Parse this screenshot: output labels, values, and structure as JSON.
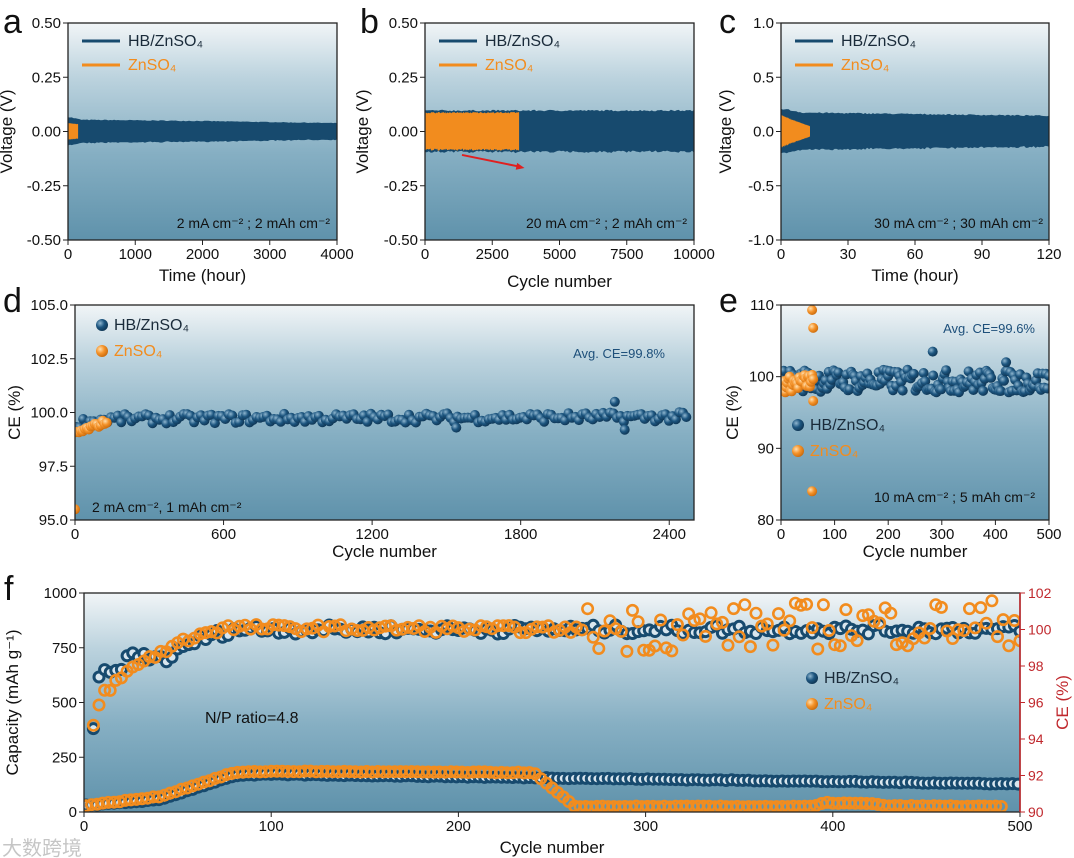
{
  "colors": {
    "hb": "#174a6e",
    "zn": "#f28c1e",
    "ce_axis": "#c0282d",
    "arrow": "#e02020"
  },
  "watermark": "大数跨境",
  "chart_data": [
    {
      "id": "a",
      "panel_label": "a",
      "type": "line",
      "xlabel": "Time (hour)",
      "ylabel": "Voltage (V)",
      "xlim": [
        0,
        4000
      ],
      "ylim": [
        -0.5,
        0.5
      ],
      "xticks": [
        0,
        1000,
        2000,
        3000,
        4000
      ],
      "xtick_labels": [
        "0",
        "1000",
        "2000",
        "3000",
        "4000"
      ],
      "yticks": [
        -0.5,
        -0.25,
        0,
        0.25,
        0.5
      ],
      "ytick_labels": [
        "-0.50",
        "-0.25",
        "0.00",
        "0.25",
        "0.50"
      ],
      "legend": [
        "HB/ZnSO₄",
        "ZnSO₄"
      ],
      "annotations": [
        "2 mA cm⁻² ; 2 mAh cm⁻²"
      ],
      "series": [
        {
          "name": "HB/ZnSO₄",
          "color_key": "hb",
          "kind": "voltage_band",
          "amplitude": [
            [
              0,
              0.07
            ],
            [
              200,
              0.056
            ],
            [
              2000,
              0.05
            ],
            [
              4000,
              0.04
            ]
          ]
        },
        {
          "name": "ZnSO₄",
          "color_key": "zn",
          "kind": "voltage_band",
          "amplitude": [
            [
              0,
              0.04
            ],
            [
              150,
              0.035
            ]
          ]
        }
      ]
    },
    {
      "id": "b",
      "panel_label": "b",
      "type": "line",
      "xlabel": "Cycle number",
      "ylabel": "Voltage (V)",
      "xlim": [
        0,
        10000
      ],
      "ylim": [
        -0.5,
        0.5
      ],
      "xticks": [
        0,
        2500,
        5000,
        7500,
        10000
      ],
      "xtick_labels": [
        "0",
        "2500",
        "5000",
        "7500",
        "10000"
      ],
      "yticks": [
        -0.5,
        -0.25,
        0,
        0.25,
        0.5
      ],
      "ytick_labels": [
        "-0.50",
        "-0.25",
        "0.00",
        "0.25",
        "0.50"
      ],
      "legend": [
        "HB/ZnSO₄",
        "ZnSO₄"
      ],
      "annotations": [
        "20 mA cm⁻² ; 2 mAh cm⁻²"
      ],
      "arrow": {
        "from": [
          1375,
          -0.108
        ],
        "to": [
          3700,
          -0.168
        ]
      },
      "series": [
        {
          "name": "HB/ZnSO₄",
          "color_key": "hb",
          "kind": "voltage_band",
          "amplitude": [
            [
              0,
              0.1
            ],
            [
              10000,
              0.1
            ]
          ]
        },
        {
          "name": "ZnSO₄",
          "color_key": "zn",
          "kind": "voltage_band",
          "amplitude": [
            [
              0,
              0.09
            ],
            [
              3500,
              0.09
            ]
          ]
        }
      ]
    },
    {
      "id": "c",
      "panel_label": "c",
      "type": "line",
      "xlabel": "Time (hour)",
      "ylabel": "Voltage (V)",
      "xlim": [
        0,
        120
      ],
      "ylim": [
        -1,
        1
      ],
      "xticks": [
        0,
        30,
        60,
        90,
        120
      ],
      "xtick_labels": [
        "0",
        "30",
        "60",
        "90",
        "120"
      ],
      "yticks": [
        -1,
        -0.5,
        0,
        0.5,
        1
      ],
      "ytick_labels": [
        "-1.0",
        "-0.5",
        "0.0",
        "0.5",
        "1.0"
      ],
      "legend": [
        "HB/ZnSO₄",
        "ZnSO₄"
      ],
      "annotations": [
        "30 mA cm⁻² ; 30 mAh cm⁻²"
      ],
      "series": [
        {
          "name": "HB/ZnSO₄",
          "color_key": "hb",
          "kind": "voltage_band",
          "amplitude": [
            [
              0,
              0.22
            ],
            [
              10,
              0.18
            ],
            [
              120,
              0.15
            ]
          ]
        },
        {
          "name": "ZnSO₄",
          "color_key": "zn",
          "kind": "voltage_band",
          "amplitude": [
            [
              0,
              0.16
            ],
            [
              4,
              0.12
            ],
            [
              13,
              0.05
            ]
          ]
        }
      ]
    },
    {
      "id": "d",
      "panel_label": "d",
      "type": "scatter",
      "xlabel": "Cycle number",
      "ylabel": "CE (%)",
      "xlim": [
        0,
        2500
      ],
      "ylim": [
        95,
        105
      ],
      "xticks": [
        0,
        600,
        1200,
        1800,
        2400
      ],
      "xtick_labels": [
        "0",
        "600",
        "1200",
        "1800",
        "2400"
      ],
      "yticks": [
        95,
        97.5,
        100,
        102.5,
        105
      ],
      "ytick_labels": [
        "95.0",
        "97.5",
        "100.0",
        "102.5",
        "105.0"
      ],
      "legend": [
        "HB/ZnSO₄",
        "ZnSO₄"
      ],
      "annotations": [
        "Avg. CE=99.8%",
        "2 mA cm⁻², 1 mAh cm⁻²"
      ],
      "series": [
        {
          "name": "HB/ZnSO₄",
          "color_key": "hb",
          "kind": "ce_scatter",
          "trend": [
            [
              5,
              99.5
            ],
            [
              150,
              99.7
            ],
            [
              2480,
              99.8
            ]
          ],
          "spread": 0.22,
          "step": 14,
          "outliers": [
            [
              2180,
              100.5
            ],
            [
              2220,
              99.2
            ],
            [
              1540,
              99.3
            ]
          ]
        },
        {
          "name": "ZnSO₄",
          "color_key": "zn",
          "kind": "ce_scatter",
          "trend": [
            [
              0,
              99.0
            ],
            [
              130,
              99.6
            ]
          ],
          "spread": 0.12,
          "step": 8,
          "outliers": [
            [
              0,
              95.5
            ]
          ]
        }
      ]
    },
    {
      "id": "e",
      "panel_label": "e",
      "type": "scatter",
      "xlabel": "Cycle number",
      "ylabel": "CE (%)",
      "xlim": [
        0,
        500
      ],
      "ylim": [
        80,
        110
      ],
      "xticks": [
        0,
        100,
        200,
        300,
        400,
        500
      ],
      "xtick_labels": [
        "0",
        "100",
        "200",
        "300",
        "400",
        "500"
      ],
      "yticks": [
        80,
        90,
        100,
        110
      ],
      "ytick_labels": [
        "80",
        "90",
        "100",
        "110"
      ],
      "legend": [
        "HB/ZnSO₄",
        "ZnSO₄"
      ],
      "annotations": [
        "Avg. CE=99.6%",
        "10 mA cm⁻² ; 5 mAh cm⁻²"
      ],
      "series": [
        {
          "name": "HB/ZnSO₄",
          "color_key": "hb",
          "kind": "ce_scatter",
          "trend": [
            [
              2,
              99.5
            ],
            [
              500,
              99.3
            ]
          ],
          "spread": 1.6,
          "step": 3,
          "outliers": [
            [
              283,
              103.5
            ],
            [
              420,
              102
            ]
          ]
        },
        {
          "name": "ZnSO₄",
          "color_key": "zn",
          "kind": "ce_scatter",
          "trend": [
            [
              2,
              98.8
            ],
            [
              60,
              99.5
            ]
          ],
          "spread": 1.1,
          "step": 2,
          "outliers": [
            [
              58,
              109.3
            ],
            [
              60,
              106.8
            ],
            [
              60,
              96.6
            ],
            [
              58,
              84.0
            ]
          ]
        }
      ]
    },
    {
      "id": "f",
      "panel_label": "f",
      "type": "scatter",
      "xlabel": "Cycle number",
      "ylabel": "Capacity (mAh g⁻¹)",
      "ylabel_right": "CE (%)",
      "xlim": [
        0,
        500
      ],
      "ylim": [
        0,
        1000
      ],
      "ylim_right": [
        90,
        102
      ],
      "xticks": [
        0,
        100,
        200,
        300,
        400,
        500
      ],
      "xtick_labels": [
        "0",
        "100",
        "200",
        "300",
        "400",
        "500"
      ],
      "yticks": [
        0,
        250,
        500,
        750,
        1000
      ],
      "ytick_labels": [
        "0",
        "250",
        "500",
        "750",
        "1000"
      ],
      "yticks_right": [
        90,
        92,
        94,
        96,
        98,
        100,
        102
      ],
      "ytick_labels_right": [
        "90",
        "92",
        "94",
        "96",
        "98",
        "100",
        "102"
      ],
      "legend": [
        "HB/ZnSO₄",
        "ZnSO₄"
      ],
      "annotations": [
        "N/P ratio=4.8"
      ],
      "series": [
        {
          "name": "HB/ZnSO₄ capacity",
          "color_key": "hb",
          "axis": "left",
          "kind": "ring",
          "trend": [
            [
              1,
              30
            ],
            [
              40,
              55
            ],
            [
              80,
              165
            ],
            [
              100,
              172
            ],
            [
              300,
              150
            ],
            [
              500,
              128
            ]
          ],
          "spread": 2,
          "step": 3
        },
        {
          "name": "ZnSO₄ capacity",
          "color_key": "zn",
          "axis": "left",
          "kind": "ring",
          "trend": [
            [
              1,
              30
            ],
            [
              40,
              70
            ],
            [
              80,
              180
            ],
            [
              100,
              186
            ],
            [
              240,
              180
            ],
            [
              262,
              25
            ],
            [
              390,
              25
            ],
            [
              395,
              42
            ],
            [
              420,
              38
            ],
            [
              430,
              28
            ],
            [
              490,
              25
            ]
          ],
          "spread": 2,
          "step": 3
        },
        {
          "name": "HB/ZnSO₄ CE",
          "color_key": "hb",
          "axis": "right",
          "kind": "ring",
          "trend": [
            [
              5,
              94.4
            ],
            [
              8,
              97.6
            ],
            [
              15,
              97.5
            ],
            [
              25,
              98.6
            ],
            [
              45,
              98.4
            ],
            [
              60,
              99.4
            ],
            [
              80,
              100
            ],
            [
              500,
              100
            ]
          ],
          "spread": 0.25,
          "step": 3
        },
        {
          "name": "ZnSO₄ CE",
          "color_key": "zn",
          "axis": "right",
          "kind": "ring",
          "trend": [
            [
              5,
              94.7
            ],
            [
              10,
              96.5
            ],
            [
              30,
              98.2
            ],
            [
              60,
              99.7
            ],
            [
              75,
              100.1
            ],
            [
              270,
              100
            ],
            [
              500,
              100.4
            ]
          ],
          "spread": 0.2,
          "step": 3,
          "noisy_from": 268,
          "noisy_spread": 1.3
        }
      ]
    }
  ]
}
